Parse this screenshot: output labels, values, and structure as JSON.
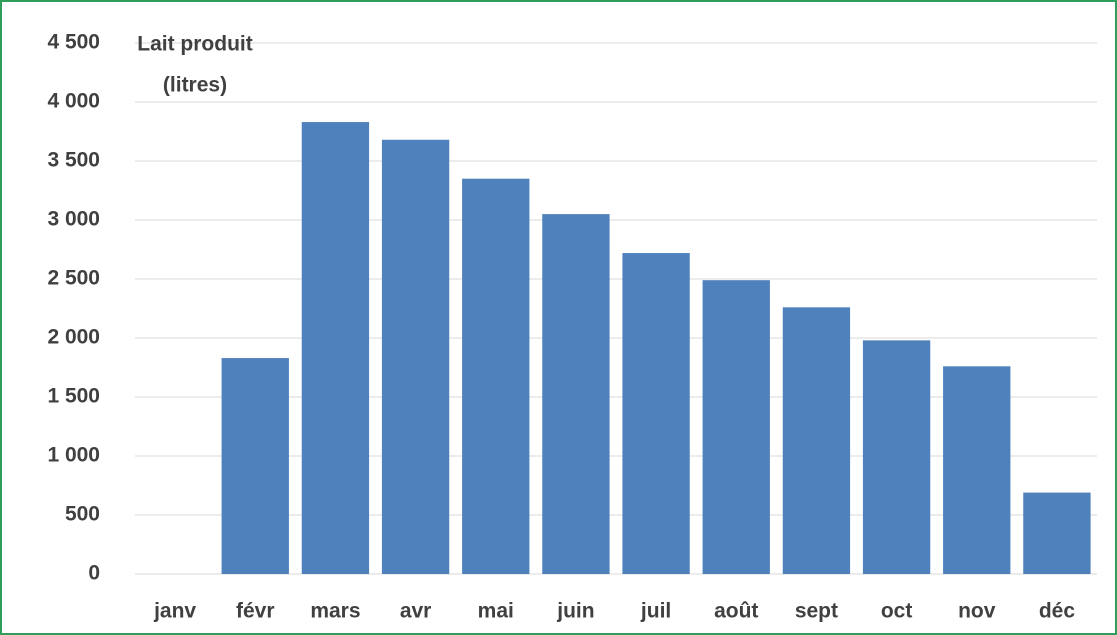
{
  "chart_data": {
    "type": "bar",
    "y_label": [
      "Lait produit",
      "(litres)"
    ],
    "categories": [
      "janv",
      "févr",
      "mars",
      "avr",
      "mai",
      "juin",
      "juil",
      "août",
      "sept",
      "oct",
      "nov",
      "déc"
    ],
    "values": [
      0,
      1830,
      3830,
      3680,
      3350,
      3050,
      2720,
      2490,
      2260,
      1980,
      1760,
      690
    ],
    "color": "#4f81bd",
    "ylim": [
      0,
      4500
    ],
    "yticks": [
      0,
      500,
      {
        "value": 1000,
        "label": "1 000"
      },
      {
        "value": 1500,
        "label": "1 500"
      },
      {
        "value": 2000,
        "label": "2 000"
      },
      {
        "value": 2500,
        "label": "2 500"
      },
      {
        "value": 3000,
        "label": "3 000"
      },
      {
        "value": 3500,
        "label": "3 500"
      },
      {
        "value": 4000,
        "label": "4 000"
      },
      {
        "value": 4500,
        "label": "4 500"
      }
    ],
    "grid": true
  }
}
